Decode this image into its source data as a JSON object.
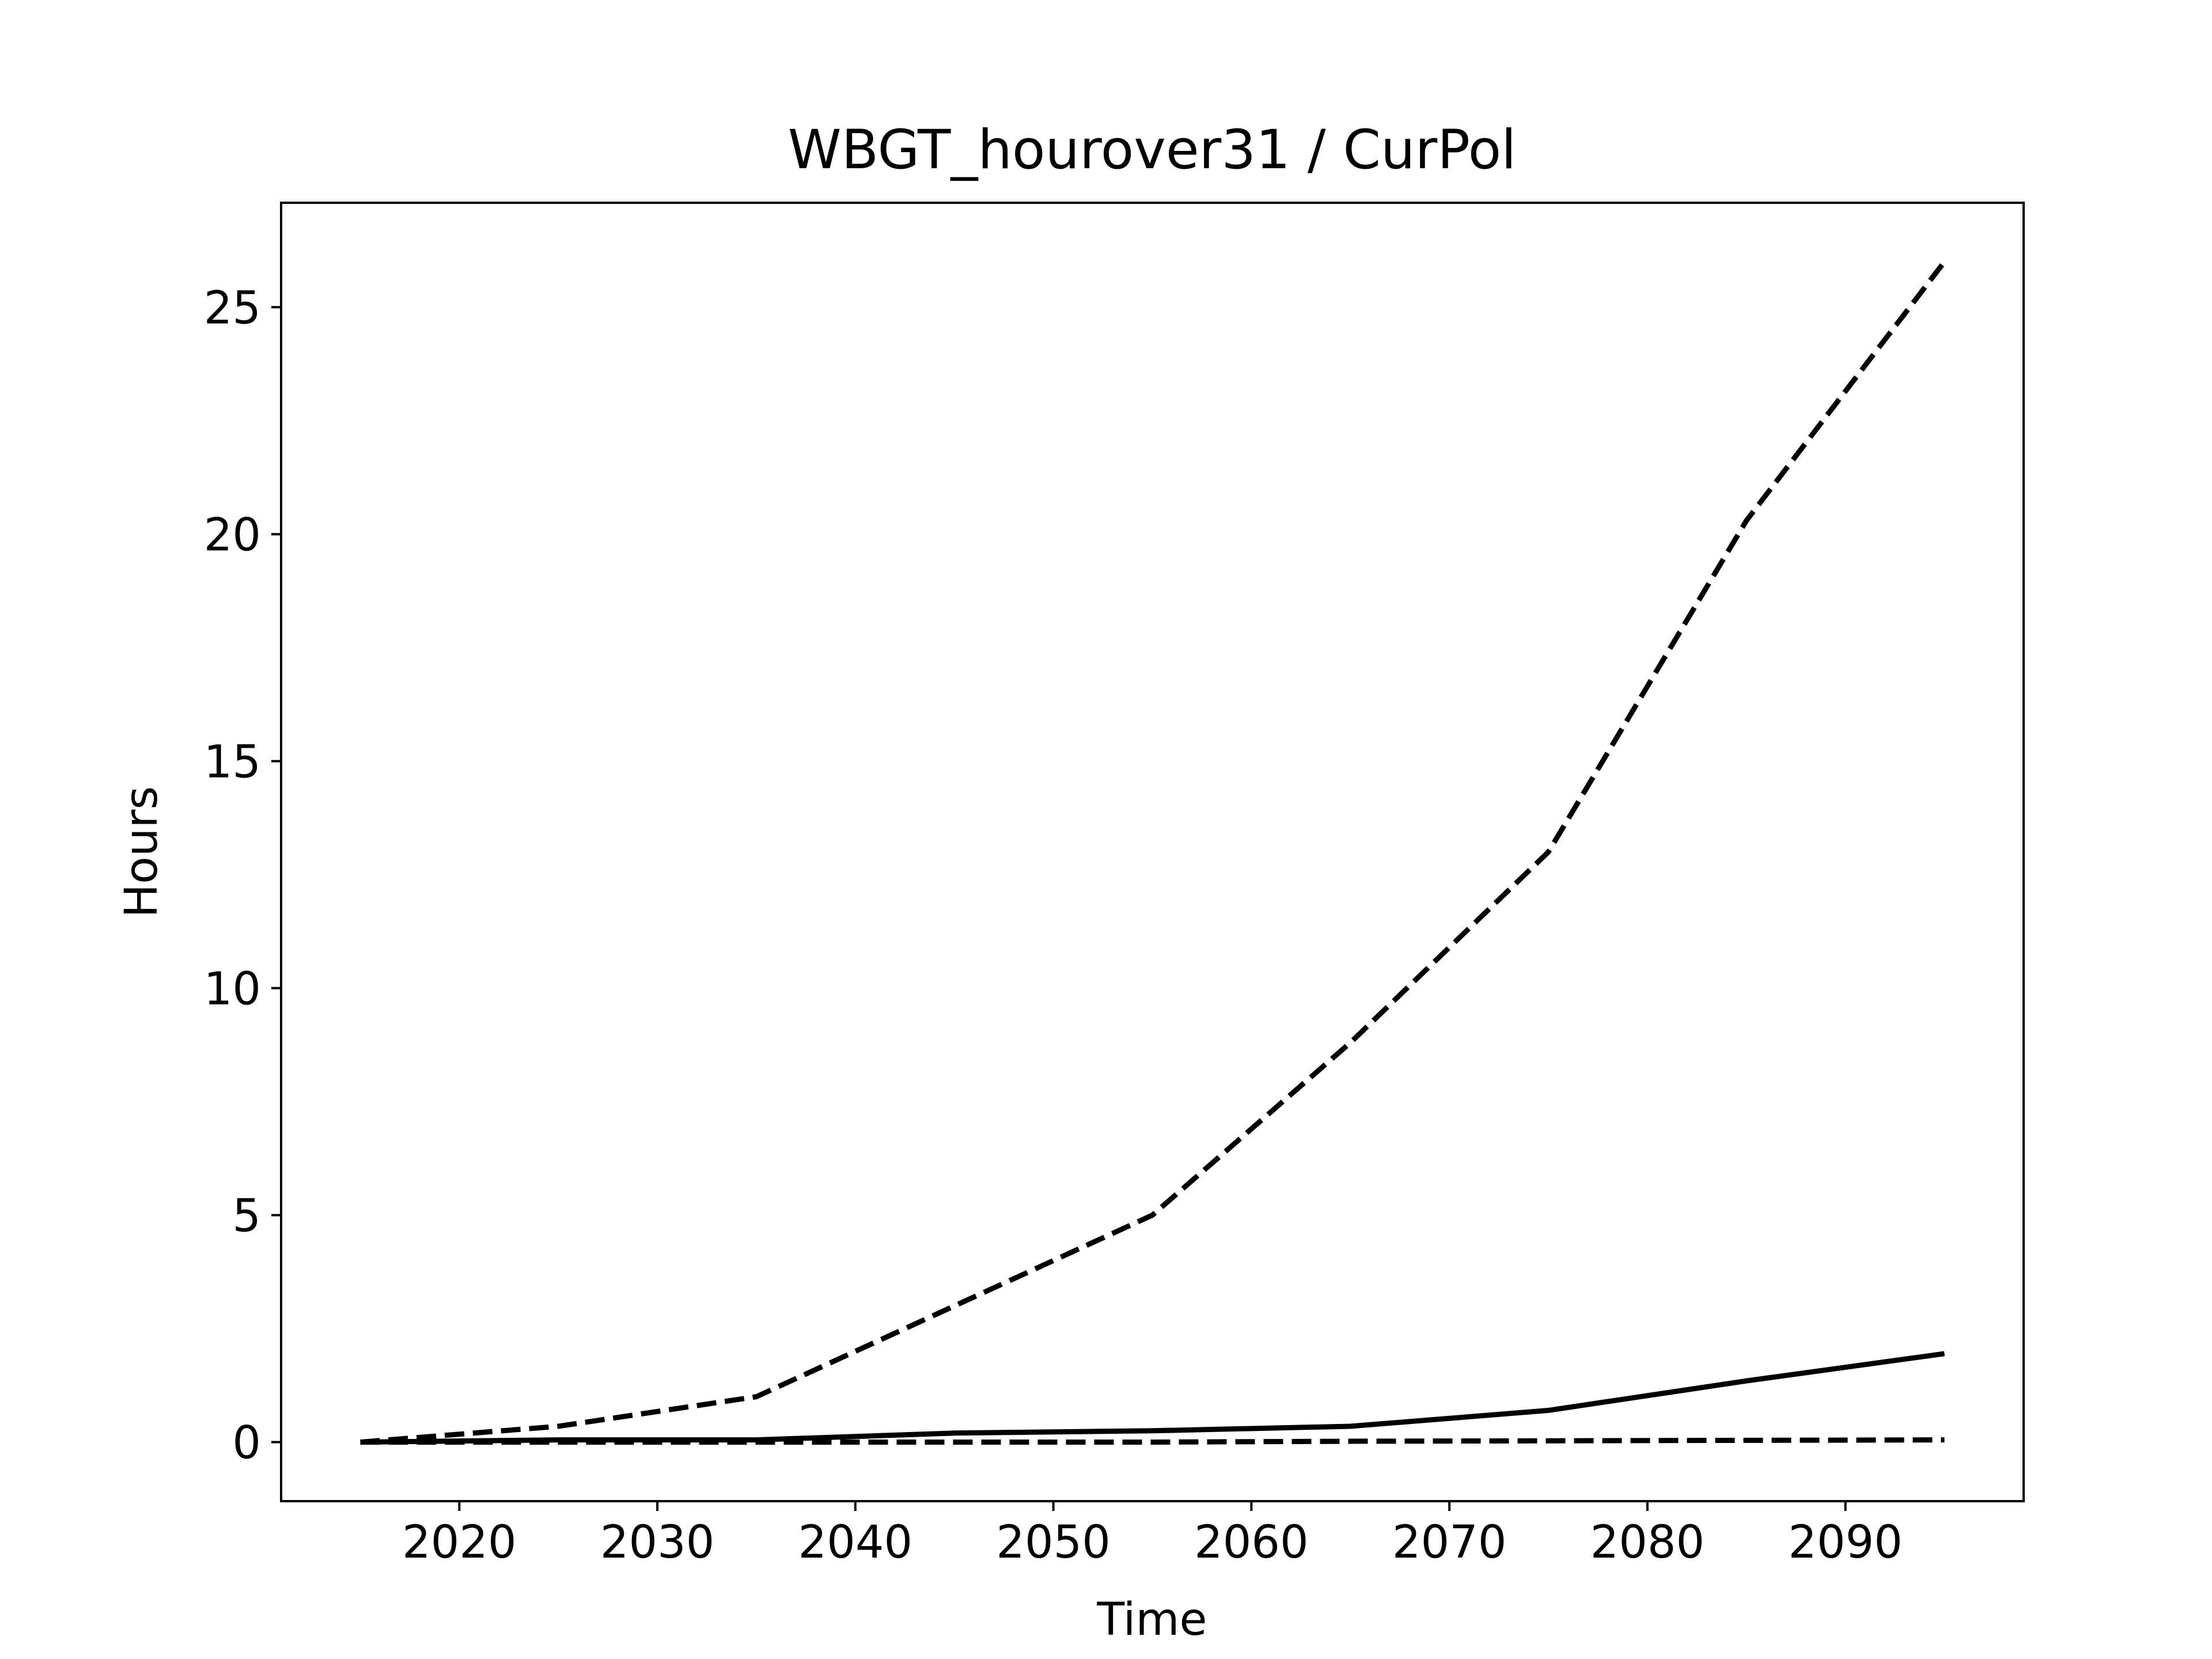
{
  "chart_data": {
    "type": "line",
    "title": "WBGT_hourover31 / CurPol",
    "xlabel": "Time",
    "ylabel": "Hours",
    "xlim": [
      2011,
      2099
    ],
    "ylim": [
      -1.3,
      27.3
    ],
    "xticks": [
      2020,
      2030,
      2040,
      2050,
      2060,
      2070,
      2080,
      2090
    ],
    "yticks": [
      0,
      5,
      10,
      15,
      20,
      25
    ],
    "grid": false,
    "legend": "none",
    "x": [
      2015,
      2025,
      2035,
      2045,
      2055,
      2065,
      2075,
      2085,
      2095
    ],
    "series": [
      {
        "style": "dashed",
        "color": "#000000",
        "values": [
          0,
          0.35,
          1.0,
          3.0,
          5.0,
          8.8,
          13.0,
          20.3,
          26.0
        ]
      },
      {
        "style": "solid",
        "color": "#000000",
        "values": [
          0,
          0.05,
          0.05,
          0.2,
          0.25,
          0.35,
          0.7,
          1.35,
          1.95
        ]
      },
      {
        "style": "dashed",
        "color": "#000000",
        "values": [
          0,
          0,
          0,
          0,
          0,
          0.02,
          0.03,
          0.04,
          0.05
        ]
      }
    ]
  }
}
